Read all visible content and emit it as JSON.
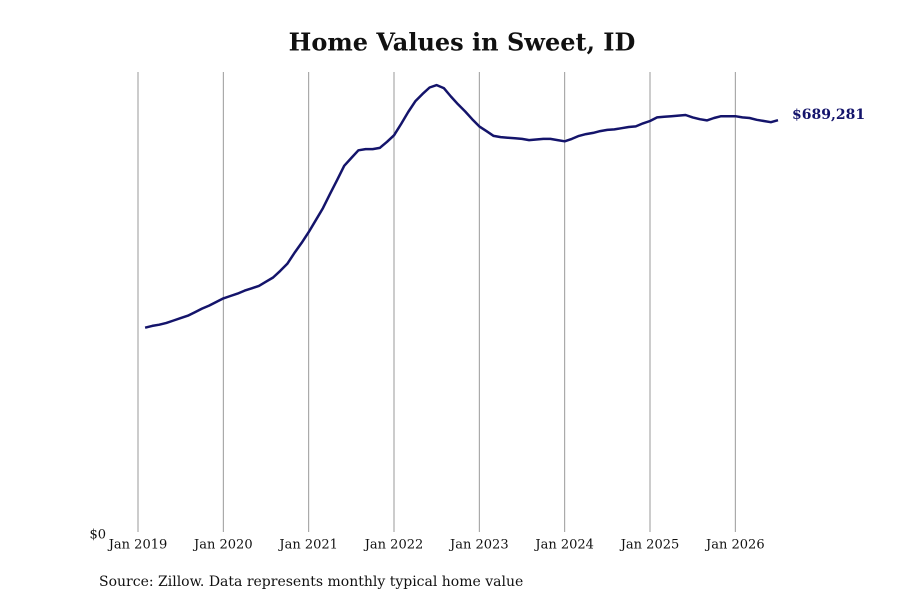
{
  "chart_data": {
    "type": "line",
    "title": "Home Values in Sweet, ID",
    "source": "Source: Zillow. Data represents monthly typical home value",
    "color": "#14146b",
    "grid": true,
    "x": [
      "2019-02",
      "2019-03",
      "2019-04",
      "2019-05",
      "2019-06",
      "2019-07",
      "2019-08",
      "2019-09",
      "2019-10",
      "2019-11",
      "2019-12",
      "2020-01",
      "2020-02",
      "2020-03",
      "2020-04",
      "2020-05",
      "2020-06",
      "2020-07",
      "2020-08",
      "2020-09",
      "2020-10",
      "2020-11",
      "2020-12",
      "2021-01",
      "2021-02",
      "2021-03",
      "2021-04",
      "2021-05",
      "2021-06",
      "2021-07",
      "2021-08",
      "2021-09",
      "2021-10",
      "2021-11",
      "2021-12",
      "2022-01",
      "2022-02",
      "2022-03",
      "2022-04",
      "2022-05",
      "2022-06",
      "2022-07",
      "2022-08",
      "2022-09",
      "2022-10",
      "2022-11",
      "2022-12",
      "2023-01",
      "2023-02",
      "2023-03",
      "2023-04",
      "2023-05",
      "2023-06",
      "2023-07",
      "2023-08",
      "2023-09",
      "2023-10",
      "2023-11",
      "2023-12",
      "2024-01",
      "2024-02",
      "2024-03",
      "2024-04",
      "2024-05",
      "2024-06",
      "2024-07",
      "2024-08",
      "2024-09",
      "2024-10",
      "2024-11",
      "2024-12",
      "2025-01",
      "2025-02",
      "2025-03",
      "2025-04",
      "2025-05",
      "2025-06",
      "2025-07",
      "2025-08",
      "2025-09",
      "2025-10",
      "2025-11",
      "2025-12",
      "2026-01",
      "2026-02",
      "2026-03",
      "2026-04",
      "2026-05",
      "2026-06",
      "2026-07"
    ],
    "values": [
      342000,
      345000,
      347000,
      350000,
      354000,
      358000,
      362000,
      368000,
      374000,
      379000,
      385000,
      391000,
      395000,
      399000,
      404000,
      408000,
      412000,
      419000,
      426000,
      437000,
      449000,
      467000,
      484000,
      502000,
      522000,
      542000,
      566000,
      589000,
      613000,
      626000,
      639000,
      641000,
      641000,
      643000,
      653000,
      664000,
      683000,
      703000,
      721000,
      733000,
      744000,
      748000,
      743000,
      729000,
      716000,
      704000,
      691000,
      679000,
      671000,
      663000,
      661000,
      660000,
      659000,
      658000,
      656000,
      657000,
      658000,
      658000,
      656000,
      654000,
      658000,
      663000,
      666000,
      668000,
      671000,
      673000,
      674000,
      676000,
      678000,
      679000,
      684000,
      688000,
      694000,
      695000,
      696000,
      697000,
      698000,
      694000,
      691000,
      689000,
      693000,
      696000,
      696000,
      696000,
      694000,
      693000,
      690000,
      688000,
      686000,
      689281
    ],
    "value_labels": [
      null,
      null,
      null,
      null,
      null,
      null,
      null,
      null,
      null,
      null,
      null,
      null,
      null,
      null,
      null,
      null,
      null,
      null,
      null,
      null,
      null,
      null,
      null,
      null,
      null,
      null,
      null,
      null,
      null,
      null,
      null,
      null,
      null,
      null,
      null,
      null,
      null,
      null,
      null,
      null,
      null,
      null,
      null,
      null,
      null,
      null,
      null,
      null,
      null,
      null,
      null,
      null,
      null,
      null,
      null,
      null,
      null,
      null,
      null,
      null,
      null,
      null,
      null,
      null,
      null,
      null,
      null,
      null,
      null,
      null,
      null,
      null,
      null,
      null,
      null,
      null,
      null,
      null,
      null,
      null,
      null,
      null,
      null,
      null,
      null,
      null,
      null,
      null,
      null,
      "$689,281"
    ],
    "xlim": [
      "2019-01",
      "2026-07"
    ],
    "xticks": [
      {
        "value": "2019-01",
        "label": "Jan 2019"
      },
      {
        "value": "2020-01",
        "label": "Jan 2020"
      },
      {
        "value": "2021-01",
        "label": "Jan 2021"
      },
      {
        "value": "2022-01",
        "label": "Jan 2022"
      },
      {
        "value": "2023-01",
        "label": "Jan 2023"
      },
      {
        "value": "2024-01",
        "label": "Jan 2024"
      },
      {
        "value": "2025-01",
        "label": "Jan 2025"
      },
      {
        "value": "2026-01",
        "label": "Jan 2026"
      }
    ],
    "ylim": [
      0,
      770000
    ],
    "yticks": [
      {
        "value": 0,
        "label": "$0"
      }
    ]
  }
}
